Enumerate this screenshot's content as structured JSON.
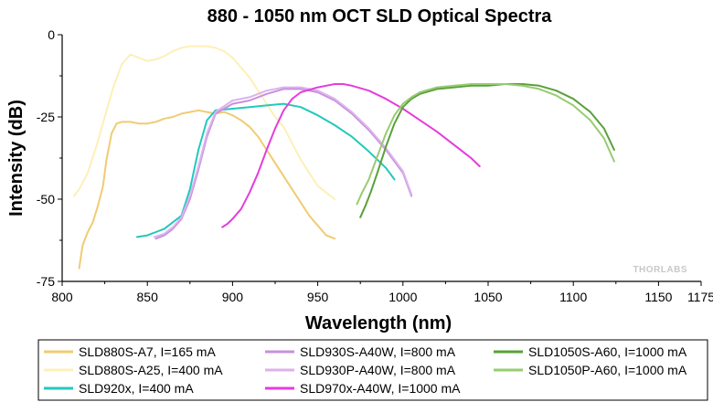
{
  "chart_data": {
    "type": "line",
    "title": "880 - 1050 nm OCT SLD Optical Spectra",
    "xlabel": "Wavelength (nm)",
    "ylabel": "Intensity (dB)",
    "xlim": [
      800,
      1175
    ],
    "ylim": [
      -75,
      0
    ],
    "xticks": [
      800,
      850,
      900,
      950,
      1000,
      1050,
      1100,
      1150,
      1175
    ],
    "yticks": [
      0,
      -25,
      -50,
      -75
    ],
    "grid": false,
    "legend_position": "bottom",
    "watermark": "THORLABS",
    "series": [
      {
        "name": "SLD880S-A7, I=165 mA",
        "color": "#f0cc72",
        "x": [
          810,
          812,
          815,
          818,
          821,
          824,
          826,
          829,
          832,
          835,
          840,
          845,
          850,
          855,
          860,
          865,
          870,
          875,
          880,
          885,
          890,
          895,
          900,
          905,
          910,
          915,
          920,
          925,
          930,
          935,
          940,
          945,
          950,
          955,
          960
        ],
        "y": [
          -71,
          -64,
          -60,
          -57,
          -52,
          -46,
          -38,
          -30,
          -27,
          -26.5,
          -26.5,
          -27,
          -27,
          -26.5,
          -25.5,
          -25,
          -24,
          -23.5,
          -23,
          -23.5,
          -24,
          -23.5,
          -24.5,
          -26,
          -28,
          -31,
          -35,
          -39,
          -43,
          -47,
          -51,
          -55,
          -58,
          -61,
          -62
        ]
      },
      {
        "name": "SLD880S-A25, I=400 mA",
        "color": "#fdf0b7",
        "x": [
          807,
          810,
          815,
          820,
          825,
          830,
          835,
          840,
          845,
          850,
          855,
          860,
          865,
          870,
          875,
          880,
          885,
          890,
          895,
          900,
          905,
          910,
          915,
          920,
          925,
          930,
          935,
          940,
          945,
          950,
          955,
          960
        ],
        "y": [
          -49,
          -47,
          -42,
          -34,
          -25,
          -16,
          -9,
          -6,
          -7,
          -8,
          -7.5,
          -6.5,
          -5,
          -4,
          -3.5,
          -3.5,
          -3.5,
          -4,
          -5,
          -7,
          -10,
          -13,
          -17,
          -21,
          -25,
          -28,
          -33,
          -38,
          -42,
          -46,
          -48,
          -50
        ]
      },
      {
        "name": "SLD920x, I=400 mA",
        "color": "#22c8be",
        "x": [
          844,
          850,
          855,
          860,
          865,
          870,
          875,
          880,
          885,
          890,
          900,
          910,
          920,
          930,
          940,
          950,
          960,
          970,
          980,
          990,
          995
        ],
        "y": [
          -61.5,
          -61,
          -60,
          -59,
          -57,
          -55,
          -47,
          -35,
          -26,
          -23,
          -22.5,
          -22,
          -21.5,
          -21,
          -22,
          -24.5,
          -27.5,
          -31,
          -35.5,
          -40.5,
          -44
        ]
      },
      {
        "name": "SLD930S-A40W, I=800 mA",
        "color": "#c890dc",
        "x": [
          855,
          860,
          865,
          870,
          875,
          880,
          885,
          890,
          900,
          910,
          920,
          930,
          940,
          950,
          960,
          970,
          980,
          990,
          1000,
          1005
        ],
        "y": [
          -62,
          -61,
          -59,
          -56,
          -50,
          -41,
          -31,
          -24,
          -21,
          -20,
          -18,
          -16.5,
          -16.5,
          -17.5,
          -20,
          -24,
          -29,
          -35,
          -42,
          -49
        ]
      },
      {
        "name": "SLD930P-A40W, I=800 mA",
        "color": "#dcb2ee",
        "x": [
          854,
          860,
          865,
          870,
          875,
          880,
          885,
          890,
          900,
          910,
          920,
          930,
          940,
          950,
          960,
          970,
          980,
          990,
          1000,
          1005
        ],
        "y": [
          -61.5,
          -60.5,
          -58.5,
          -55.5,
          -49,
          -40,
          -30,
          -23.5,
          -20,
          -19,
          -17,
          -16,
          -16,
          -17,
          -19.5,
          -23.5,
          -28.5,
          -34.5,
          -41.5,
          -48.5
        ]
      },
      {
        "name": "SLD970x-A40W, I=1000 mA",
        "color": "#e63cdc",
        "x": [
          894,
          897,
          900,
          905,
          910,
          915,
          920,
          925,
          930,
          935,
          940,
          950,
          955,
          960,
          965,
          970,
          980,
          990,
          1000,
          1010,
          1020,
          1030,
          1040,
          1045
        ],
        "y": [
          -58.5,
          -57.5,
          -56,
          -53,
          -48,
          -42,
          -35,
          -28.5,
          -23,
          -19.5,
          -17.5,
          -16,
          -15.5,
          -15,
          -15,
          -15.5,
          -17,
          -19.5,
          -22.5,
          -26,
          -29.5,
          -33.5,
          -37.5,
          -40
        ]
      },
      {
        "name": "SLD1050S-A60, I=1000 mA",
        "color": "#5aa03a",
        "x": [
          975,
          978,
          981,
          985,
          990,
          995,
          1000,
          1005,
          1010,
          1020,
          1030,
          1040,
          1050,
          1060,
          1070,
          1080,
          1090,
          1100,
          1110,
          1118,
          1124
        ],
        "y": [
          -55.5,
          -52,
          -48,
          -42,
          -34,
          -27,
          -22,
          -19.5,
          -18,
          -16.5,
          -16,
          -15.5,
          -15.5,
          -15,
          -15,
          -15.5,
          -17,
          -19.5,
          -23.5,
          -28.5,
          -35
        ]
      },
      {
        "name": "SLD1050P-A60, I=1000 mA",
        "color": "#96cc72",
        "x": [
          973,
          976,
          980,
          985,
          990,
          995,
          1000,
          1005,
          1010,
          1020,
          1030,
          1040,
          1050,
          1060,
          1070,
          1080,
          1090,
          1100,
          1110,
          1118,
          1124
        ],
        "y": [
          -51.5,
          -48,
          -44,
          -37,
          -30,
          -24.5,
          -21,
          -19,
          -17.5,
          -16,
          -15.5,
          -15,
          -15,
          -15,
          -15.5,
          -16.5,
          -18.5,
          -21.5,
          -26,
          -31.5,
          -38.5
        ]
      }
    ]
  }
}
